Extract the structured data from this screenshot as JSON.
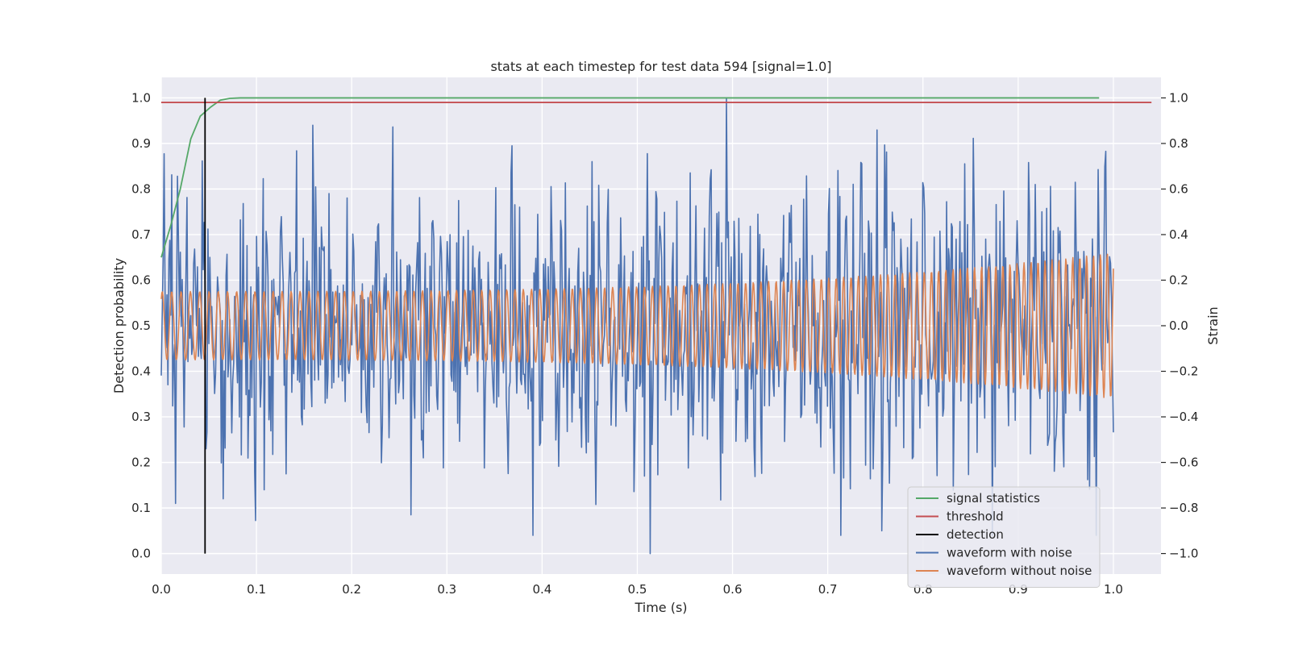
{
  "chart_data": {
    "type": "line",
    "title": "stats at each timestep for test data 594 [signal=1.0]",
    "xlabel": "Time (s)",
    "ylabel_left": "Detection probability",
    "ylabel_right": "Strain",
    "xlim": [
      0.0,
      1.05
    ],
    "ylim_left": [
      -0.045,
      1.045
    ],
    "ylim_right": [
      -1.09,
      1.09
    ],
    "x_ticks": [
      "0.0",
      "0.1",
      "0.2",
      "0.3",
      "0.4",
      "0.5",
      "0.6",
      "0.7",
      "0.8",
      "0.9",
      "1.0"
    ],
    "y_ticks_left": [
      "0.0",
      "0.1",
      "0.2",
      "0.3",
      "0.4",
      "0.5",
      "0.6",
      "0.7",
      "0.8",
      "0.9",
      "1.0"
    ],
    "y_ticks_right": [
      "−1.0",
      "−0.8",
      "−0.6",
      "−0.4",
      "−0.2",
      "0.0",
      "0.2",
      "0.4",
      "0.6",
      "0.8",
      "1.0"
    ],
    "grid": true,
    "legend_position": "lower-right",
    "series": [
      {
        "name": "signal statistics",
        "axis": "left",
        "color": "#55a868",
        "x": [
          0.0,
          0.01,
          0.02,
          0.031,
          0.041,
          0.052,
          0.062,
          0.072,
          0.083,
          0.1,
          0.2,
          0.4,
          0.6,
          0.8,
          0.985
        ],
        "y": [
          0.65,
          0.72,
          0.8,
          0.91,
          0.96,
          0.98,
          0.995,
          0.999,
          1.0,
          1.0,
          1.0,
          1.0,
          1.0,
          1.0,
          1.0
        ]
      },
      {
        "name": "threshold",
        "axis": "left",
        "color": "#c44e52",
        "x": [
          0.0,
          1.04
        ],
        "y": [
          0.99,
          0.99
        ]
      },
      {
        "name": "detection",
        "axis": "left",
        "color": "#000000",
        "x": [
          0.046,
          0.046
        ],
        "y": [
          0.0,
          1.0
        ]
      },
      {
        "name": "waveform with noise",
        "axis": "right",
        "color": "#4c72b0",
        "x_start": 0.0,
        "x_end": 1.0,
        "points": 1000,
        "peak_annotations": [
          {
            "x": 0.594,
            "y": 1.0
          },
          {
            "x": 0.514,
            "y": -1.0
          },
          {
            "x": 0.262,
            "y": -0.83
          },
          {
            "x": 0.108,
            "y": -0.72
          },
          {
            "x": 0.368,
            "y": 0.79
          }
        ],
        "y_range": [
          -1.0,
          1.0
        ]
      },
      {
        "name": "waveform without noise",
        "axis": "right",
        "color": "#dd8452",
        "x_start": 0.0,
        "x_end": 1.0,
        "amplitude_start": 0.15,
        "amplitude_end": 0.32,
        "cycles": 120
      }
    ]
  }
}
